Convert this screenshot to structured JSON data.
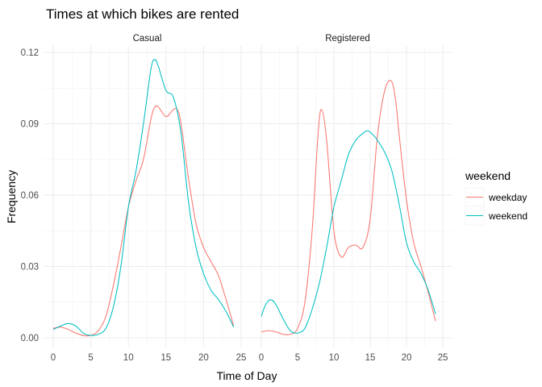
{
  "chart_data": {
    "type": "line",
    "title": "Times at which bikes are rented",
    "xlabel": "Time of Day",
    "ylabel": "Frequency",
    "xlim": [
      0,
      25
    ],
    "ylim": [
      0,
      0.12
    ],
    "x_ticks": [
      0,
      5,
      10,
      15,
      20,
      25
    ],
    "y_ticks": [
      0.0,
      0.03,
      0.06,
      0.09,
      0.12
    ],
    "y_tick_labels": [
      "0.00",
      "0.03",
      "0.06",
      "0.09",
      "0.12"
    ],
    "grid": true,
    "legend": {
      "title": "weekend",
      "position": "right",
      "entries": [
        {
          "label": "weekday",
          "color": "#F8766D"
        },
        {
          "label": "weekend",
          "color": "#00BFC4"
        }
      ]
    },
    "panels": [
      {
        "name": "Casual",
        "series": [
          {
            "name": "weekday",
            "color": "#F8766D",
            "x": [
              0,
              1,
              2,
              3,
              4,
              5,
              6,
              7,
              8,
              9,
              10,
              11,
              12,
              13,
              13.5,
              14,
              15,
              16,
              16.5,
              17,
              18,
              19,
              20,
              21,
              22,
              23,
              24
            ],
            "y": [
              0.004,
              0.0045,
              0.0035,
              0.002,
              0.001,
              0.001,
              0.003,
              0.009,
              0.022,
              0.038,
              0.055,
              0.066,
              0.075,
              0.092,
              0.097,
              0.097,
              0.093,
              0.096,
              0.096,
              0.09,
              0.067,
              0.048,
              0.038,
              0.032,
              0.026,
              0.016,
              0.005
            ]
          },
          {
            "name": "weekend",
            "color": "#00BFC4",
            "x": [
              0,
              1,
              2,
              3,
              4,
              5,
              6,
              7,
              8,
              9,
              10,
              11,
              12,
              13,
              13.5,
              14,
              15,
              16,
              17,
              18,
              19,
              20,
              21,
              22,
              23,
              24
            ],
            "y": [
              0.0035,
              0.005,
              0.006,
              0.005,
              0.002,
              0.001,
              0.0015,
              0.004,
              0.013,
              0.03,
              0.055,
              0.07,
              0.09,
              0.113,
              0.117,
              0.114,
              0.104,
              0.101,
              0.086,
              0.057,
              0.038,
              0.027,
              0.02,
              0.016,
              0.011,
              0.0045
            ]
          }
        ]
      },
      {
        "name": "Registered",
        "series": [
          {
            "name": "weekday",
            "color": "#F8766D",
            "x": [
              0,
              1,
              2,
              3,
              4,
              5,
              6,
              7,
              7.8,
              8.3,
              9,
              10,
              11,
              12,
              13,
              14,
              15,
              16,
              17,
              17.9,
              18.5,
              19,
              20,
              21,
              22,
              23,
              24
            ],
            "y": [
              0.0025,
              0.003,
              0.0025,
              0.0015,
              0.0015,
              0.004,
              0.015,
              0.045,
              0.085,
              0.096,
              0.083,
              0.045,
              0.034,
              0.038,
              0.039,
              0.038,
              0.05,
              0.085,
              0.104,
              0.108,
              0.1,
              0.085,
              0.058,
              0.04,
              0.03,
              0.019,
              0.007
            ]
          },
          {
            "name": "weekend",
            "color": "#00BFC4",
            "x": [
              0,
              0.6,
              1.3,
              2,
              3,
              4,
              5,
              6,
              7,
              8,
              9,
              10,
              11,
              12,
              13,
              14,
              14.7,
              15.5,
              16,
              17,
              18,
              19,
              20,
              21,
              22,
              23,
              24
            ],
            "y": [
              0.009,
              0.014,
              0.016,
              0.014,
              0.008,
              0.003,
              0.002,
              0.004,
              0.012,
              0.023,
              0.038,
              0.055,
              0.066,
              0.077,
              0.083,
              0.086,
              0.087,
              0.085,
              0.083,
              0.078,
              0.07,
              0.056,
              0.04,
              0.032,
              0.027,
              0.02,
              0.01
            ]
          }
        ]
      }
    ]
  }
}
